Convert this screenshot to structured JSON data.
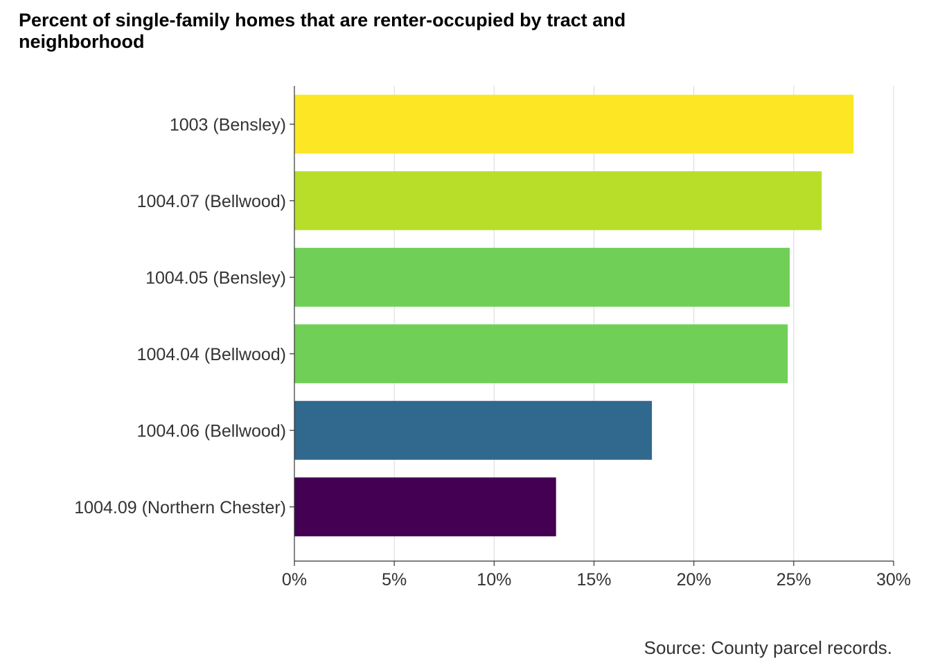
{
  "chart_data": {
    "type": "bar",
    "orientation": "horizontal",
    "title": "Percent of single-family homes that are renter-occupied by tract and neighborhood",
    "caption": "Source: County parcel records.",
    "xlabel": "",
    "ylabel": "",
    "xlim": [
      0,
      30
    ],
    "x_ticks": [
      0,
      5,
      10,
      15,
      20,
      25,
      30
    ],
    "x_tick_labels": [
      "0%",
      "5%",
      "10%",
      "15%",
      "20%",
      "25%",
      "30%"
    ],
    "grid": "vertical major",
    "legend": "none",
    "categories": [
      "1003 (Bensley)",
      "1004.07 (Bellwood)",
      "1004.05 (Bensley)",
      "1004.04 (Bellwood)",
      "1004.06 (Bellwood)",
      "1004.09 (Northern Chester)"
    ],
    "values": [
      28.0,
      26.4,
      24.8,
      24.7,
      17.9,
      13.1
    ],
    "colors": [
      "#fde725",
      "#b8de29",
      "#6fcf57",
      "#6fcf57",
      "#31688e",
      "#440154"
    ]
  }
}
